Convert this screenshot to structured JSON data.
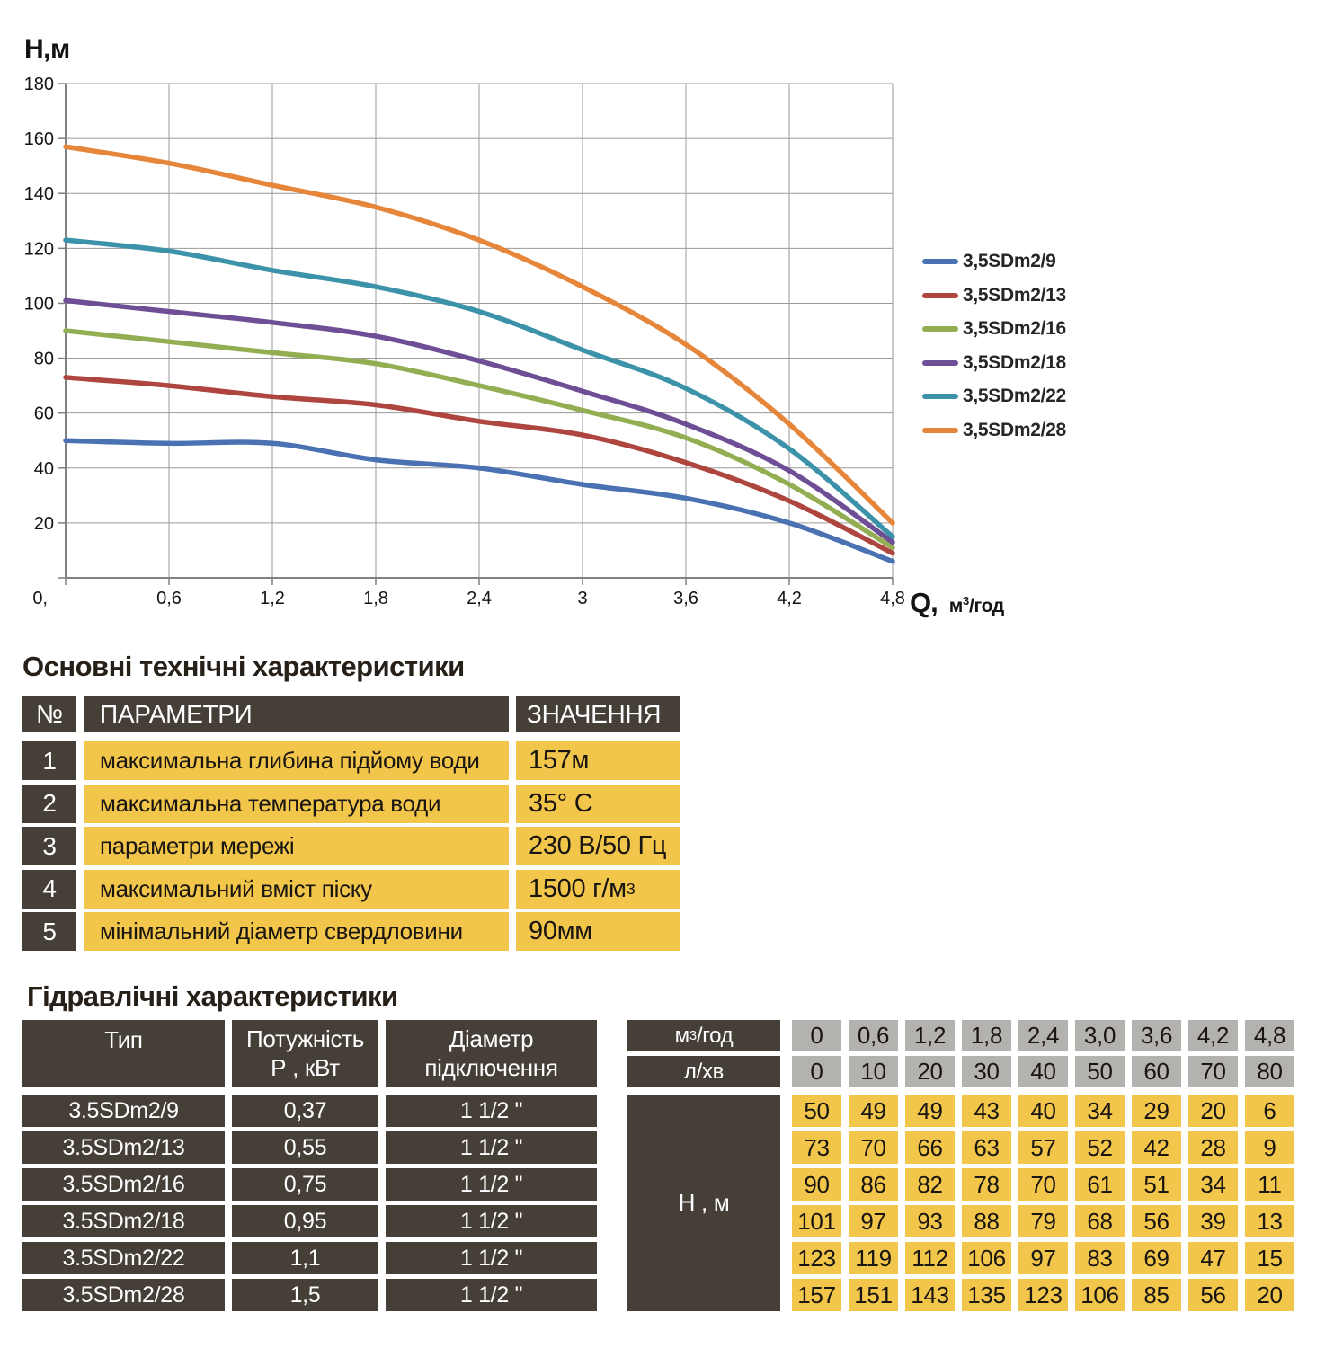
{
  "colors": {
    "dark_cell": "#453F38",
    "yellow_cell": "#F2C64A",
    "grey_cell": "#B4B2AF",
    "grid": "#9A9A9A",
    "axis": "#808080",
    "tick_text": "#141414"
  },
  "chart": {
    "y_axis_title": "Н,м",
    "x_axis_title_q": "Q,",
    "x_axis_title_unit": "м³/год"
  },
  "chart_data": {
    "type": "line",
    "x": [
      0,
      0.6,
      1.2,
      1.8,
      2.4,
      3.0,
      3.6,
      4.2,
      4.8
    ],
    "x_tick_labels": [
      "0,",
      "0,6",
      "1,2",
      "1,8",
      "2,4",
      "3",
      "3,6",
      "4,2",
      "4,8"
    ],
    "y_ticks": [
      20,
      40,
      60,
      80,
      100,
      120,
      140,
      160,
      180
    ],
    "xlim": [
      0,
      4.8
    ],
    "ylim": [
      0,
      180
    ],
    "xlabel": "Q, м³/год",
    "ylabel": "Н,м",
    "grid": true,
    "legend_position": "right",
    "series": [
      {
        "name": "3,5SDm2/9",
        "color": "#4A72B2",
        "values": [
          50,
          49,
          49,
          43,
          40,
          34,
          29,
          20,
          6
        ]
      },
      {
        "name": "3,5SDm2/13",
        "color": "#AE453E",
        "values": [
          73,
          70,
          66,
          63,
          57,
          52,
          42,
          28,
          9
        ]
      },
      {
        "name": "3,5SDm2/16",
        "color": "#93AE52",
        "values": [
          90,
          86,
          82,
          78,
          70,
          61,
          51,
          34,
          11
        ]
      },
      {
        "name": "3,5SDm2/18",
        "color": "#6E4F96",
        "values": [
          101,
          97,
          93,
          88,
          79,
          68,
          56,
          39,
          13
        ]
      },
      {
        "name": "3,5SDm2/22",
        "color": "#3C93A9",
        "values": [
          123,
          119,
          112,
          106,
          97,
          83,
          69,
          47,
          15
        ]
      },
      {
        "name": "3,5SDm2/28",
        "color": "#E6863B",
        "values": [
          157,
          151,
          143,
          135,
          123,
          106,
          85,
          56,
          20
        ]
      }
    ]
  },
  "tech_section": {
    "title": "Основні технічні характеристики",
    "headers": {
      "num": "№",
      "param": "ПАРАМЕТРИ",
      "value": "ЗНАЧЕННЯ"
    },
    "rows": [
      {
        "num": "1",
        "param": "максимальна глибина підйому води",
        "value": "157м"
      },
      {
        "num": "2",
        "param": "максимальна температура води",
        "value": "35° С"
      },
      {
        "num": "3",
        "param": "параметри мережі",
        "value": "230 В/50 Гц"
      },
      {
        "num": "4",
        "param": "максимальний вміст піску",
        "value": "1500 г/м³"
      },
      {
        "num": "5",
        "param": "мінімальний діаметр свердловини",
        "value": "90мм"
      }
    ]
  },
  "hydraulic_section": {
    "title": "Гідравлічні характеристики",
    "headers": {
      "type": "Тип",
      "power_l1": "Потужність",
      "power_l2": "Р , кВт",
      "diameter_l1": "Діаметр",
      "diameter_l2": "підключення",
      "flow_m3": "м³/год",
      "flow_l": "л/хв",
      "head": "Н , м"
    },
    "flow_m3_values": [
      "0",
      "0,6",
      "1,2",
      "1,8",
      "2,4",
      "3,0",
      "3,6",
      "4,2",
      "4,8"
    ],
    "flow_l_values": [
      "0",
      "10",
      "20",
      "30",
      "40",
      "50",
      "60",
      "70",
      "80"
    ],
    "rows": [
      {
        "type": "3.5SDm2/9",
        "power": "0,37",
        "diameter": "1 1/2 \"",
        "head": [
          50,
          49,
          49,
          43,
          40,
          34,
          29,
          20,
          6
        ]
      },
      {
        "type": "3.5SDm2/13",
        "power": "0,55",
        "diameter": "1 1/2 \"",
        "head": [
          73,
          70,
          66,
          63,
          57,
          52,
          42,
          28,
          9
        ]
      },
      {
        "type": "3.5SDm2/16",
        "power": "0,75",
        "diameter": "1 1/2 \"",
        "head": [
          90,
          86,
          82,
          78,
          70,
          61,
          51,
          34,
          11
        ]
      },
      {
        "type": "3.5SDm2/18",
        "power": "0,95",
        "diameter": "1 1/2 \"",
        "head": [
          101,
          97,
          93,
          88,
          79,
          68,
          56,
          39,
          13
        ]
      },
      {
        "type": "3.5SDm2/22",
        "power": "1,1",
        "diameter": "1 1/2 \"",
        "head": [
          123,
          119,
          112,
          106,
          97,
          83,
          69,
          47,
          15
        ]
      },
      {
        "type": "3.5SDm2/28",
        "power": "1,5",
        "diameter": "1 1/2 \"",
        "head": [
          157,
          151,
          143,
          135,
          123,
          106,
          85,
          56,
          20
        ]
      }
    ]
  }
}
